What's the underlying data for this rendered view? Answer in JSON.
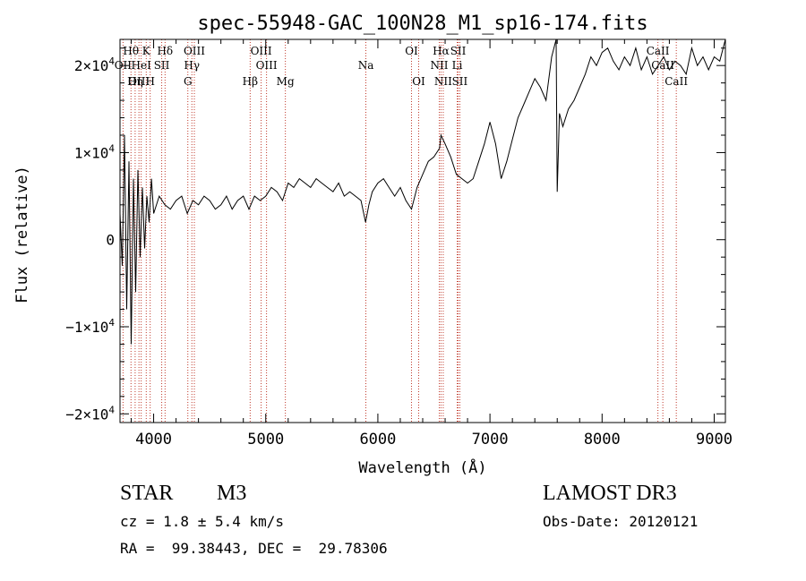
{
  "chart_data": {
    "type": "line",
    "title": "spec-55948-GAC_100N28_M1_sp16-174.fits",
    "xlabel": "Wavelength (Å)",
    "ylabel": "Flux (relative)",
    "xlim": [
      3700,
      9100
    ],
    "ylim": [
      -21000,
      23000
    ],
    "xticks": [
      4000,
      5000,
      6000,
      7000,
      8000,
      9000
    ],
    "xtick_labels": [
      "4000",
      "5000",
      "6000",
      "7000",
      "8000",
      "9000"
    ],
    "yticks": [
      {
        "value": 20000,
        "mantissa": "2",
        "sign": "",
        "label": "2×10⁴"
      },
      {
        "value": 10000,
        "mantissa": "1",
        "sign": "",
        "label": "1×10⁴"
      },
      {
        "value": 0,
        "mantissa": "0",
        "sign": "",
        "label": "0"
      },
      {
        "value": -10000,
        "mantissa": "1",
        "sign": "−",
        "label": "−1×10⁴"
      },
      {
        "value": -20000,
        "mantissa": "2",
        "sign": "−",
        "label": "−2×10⁴"
      }
    ],
    "series": [
      {
        "color": "#000000",
        "x": [
          3700,
          3720,
          3740,
          3760,
          3780,
          3800,
          3820,
          3840,
          3860,
          3880,
          3900,
          3920,
          3940,
          3960,
          3980,
          4000,
          4050,
          4100,
          4150,
          4200,
          4250,
          4300,
          4350,
          4400,
          4450,
          4500,
          4550,
          4600,
          4650,
          4700,
          4750,
          4800,
          4850,
          4900,
          4950,
          5000,
          5050,
          5100,
          5150,
          5200,
          5250,
          5300,
          5350,
          5400,
          5450,
          5500,
          5550,
          5600,
          5650,
          5700,
          5750,
          5800,
          5850,
          5890,
          5920,
          5950,
          6000,
          6050,
          6100,
          6150,
          6200,
          6250,
          6300,
          6350,
          6400,
          6450,
          6500,
          6550,
          6563,
          6600,
          6650,
          6700,
          6750,
          6800,
          6850,
          6900,
          6950,
          7000,
          7050,
          7100,
          7150,
          7200,
          7250,
          7300,
          7350,
          7400,
          7450,
          7500,
          7550,
          7590,
          7600,
          7620,
          7650,
          7700,
          7750,
          7800,
          7850,
          7900,
          7950,
          8000,
          8050,
          8100,
          8150,
          8200,
          8250,
          8300,
          8350,
          8400,
          8450,
          8500,
          8550,
          8600,
          8650,
          8700,
          8750,
          8800,
          8850,
          8900,
          8950,
          9000,
          9050,
          9100
        ],
        "y": [
          3000,
          -3000,
          12000,
          -8000,
          9000,
          -12000,
          7000,
          -6000,
          8000,
          -2000,
          6000,
          -1000,
          5000,
          2000,
          7000,
          3000,
          5000,
          4000,
          3500,
          4500,
          5000,
          3000,
          4500,
          4000,
          5000,
          4500,
          3500,
          4000,
          5000,
          3500,
          4500,
          5000,
          3500,
          5000,
          4500,
          5000,
          6000,
          5500,
          4500,
          6500,
          6000,
          7000,
          6500,
          6000,
          7000,
          6500,
          6000,
          5500,
          6500,
          5000,
          5500,
          5000,
          4500,
          2000,
          4000,
          5500,
          6500,
          7000,
          6000,
          5000,
          6000,
          4500,
          3500,
          6000,
          7500,
          9000,
          9500,
          10500,
          12000,
          11000,
          9500,
          7500,
          7000,
          6500,
          7000,
          9000,
          11000,
          13500,
          11000,
          7000,
          9000,
          11500,
          14000,
          15500,
          17000,
          18500,
          17500,
          16000,
          21000,
          23000,
          5500,
          14500,
          13000,
          15000,
          16000,
          17500,
          19000,
          21000,
          20000,
          21500,
          22000,
          20500,
          19500,
          21000,
          20000,
          22000,
          19500,
          21000,
          19000,
          20000,
          21000,
          19500,
          20500,
          20000,
          19000,
          22000,
          20000,
          21000,
          19500,
          21000,
          20500,
          23000
        ]
      }
    ],
    "lines": [
      {
        "name": "Hθ",
        "x": 3798,
        "row": 0
      },
      {
        "name": "OII",
        "x": 3727,
        "row": 1
      },
      {
        "name": "OIII",
        "x": 3869,
        "row": 2
      },
      {
        "name": "Hη",
        "x": 3835,
        "row": 2
      },
      {
        "name": "K",
        "x": 3934,
        "row": 0
      },
      {
        "name": "HeI",
        "x": 3889,
        "row": 1
      },
      {
        "name": "SII",
        "x": 4072,
        "row": 1
      },
      {
        "name": "H",
        "x": 3969,
        "row": 2
      },
      {
        "name": "Hδ",
        "x": 4102,
        "row": 0
      },
      {
        "name": "OIII",
        "x": 4363,
        "row": 0
      },
      {
        "name": "Hγ",
        "x": 4341,
        "row": 1
      },
      {
        "name": "G",
        "x": 4305,
        "row": 2
      },
      {
        "name": "OIII",
        "x": 4959,
        "row": 0
      },
      {
        "name": "OIII",
        "x": 5007,
        "row": 1
      },
      {
        "name": "Hβ",
        "x": 4861,
        "row": 2
      },
      {
        "name": "Mg",
        "x": 5175,
        "row": 2
      },
      {
        "name": "Na",
        "x": 5893,
        "row": 1
      },
      {
        "name": "OI",
        "x": 6300,
        "row": 0
      },
      {
        "name": "OI",
        "x": 6364,
        "row": 2
      },
      {
        "name": "Hα",
        "x": 6563,
        "row": 0
      },
      {
        "name": "SII",
        "x": 6716,
        "row": 0
      },
      {
        "name": "NII",
        "x": 6548,
        "row": 1
      },
      {
        "name": "Li",
        "x": 6708,
        "row": 1
      },
      {
        "name": "NII",
        "x": 6583,
        "row": 2
      },
      {
        "name": "SII",
        "x": 6731,
        "row": 2
      },
      {
        "name": "CaII",
        "x": 8498,
        "row": 0
      },
      {
        "name": "CaII",
        "x": 8542,
        "row": 1
      },
      {
        "name": "CaII",
        "x": 8662,
        "row": 2
      }
    ]
  },
  "info": {
    "object_type": "STAR",
    "subclass": "M3",
    "survey": "LAMOST DR3",
    "cz": "cz = 1.8 ± 5.4 km/s",
    "obs_date": "Obs-Date: 20120121",
    "coords": "RA =  99.38443, DEC =  29.78306"
  }
}
